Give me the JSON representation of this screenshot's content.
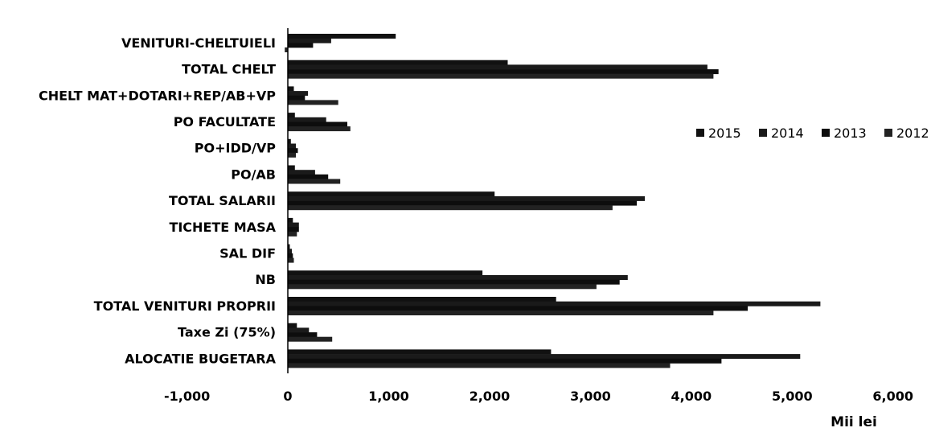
{
  "chart_data": {
    "type": "bar",
    "orientation": "horizontal",
    "categories": [
      "VENITURI-CHELTUIELI",
      "TOTAL CHELT",
      "CHELT MAT+DOTARI+REP/AB+VP",
      "PO FACULTATE",
      "PO+IDD/VP",
      "PO/AB",
      "TOTAL SALARII",
      "TICHETE MASA",
      "SAL DIF",
      "NB",
      "TOTAL VENITURI PROPRII",
      "Taxe Zi (75%)",
      "ALOCATIE BUGETARA"
    ],
    "series": [
      {
        "name": "2015",
        "color": "#111111",
        "values": [
          1070,
          2180,
          60,
          70,
          30,
          70,
          2050,
          50,
          20,
          1930,
          2660,
          90,
          2610
        ]
      },
      {
        "name": "2014",
        "color": "#1a1a1a",
        "values": [
          430,
          4160,
          200,
          380,
          80,
          270,
          3540,
          110,
          40,
          3370,
          5280,
          210,
          5080
        ]
      },
      {
        "name": "2013",
        "color": "#0d0d0d",
        "values": [
          250,
          4270,
          170,
          590,
          100,
          400,
          3460,
          110,
          50,
          3290,
          4560,
          290,
          4300
        ]
      },
      {
        "name": "2012",
        "color": "#222222",
        "values": [
          -30,
          4220,
          500,
          620,
          80,
          520,
          3220,
          90,
          60,
          3060,
          4220,
          440,
          3790
        ]
      }
    ],
    "xlim": [
      -1000,
      6000
    ],
    "xticks": [
      -1000,
      0,
      1000,
      2000,
      3000,
      4000,
      5000,
      6000
    ],
    "xtick_labels": [
      "-1,000",
      "0",
      "1,000",
      "2,000",
      "3,000",
      "4,000",
      "5,000",
      "6,000"
    ],
    "xlabel": "Mii lei",
    "legend_position": "right",
    "grid": false
  }
}
